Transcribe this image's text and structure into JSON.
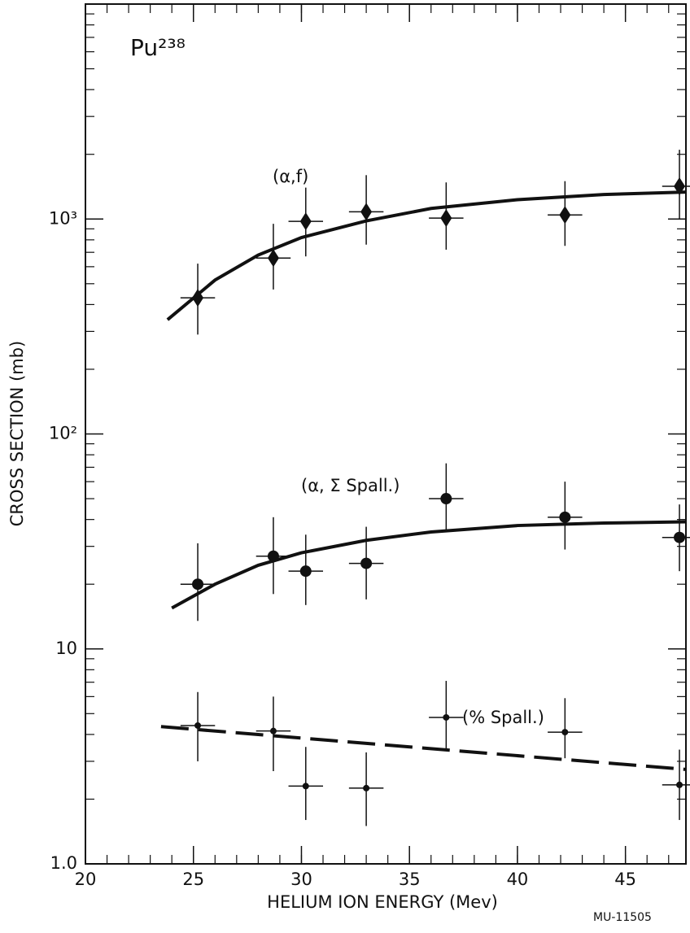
{
  "chart_data": {
    "type": "scatter",
    "title": "Pu²³⁸",
    "xlabel": "HELIUM ION ENERGY (Mev)",
    "ylabel": "CROSS SECTION (mb)",
    "footnote": "MU-11505",
    "log_y": true,
    "xlim": [
      20,
      47.8
    ],
    "xticks": [
      20,
      25,
      30,
      35,
      40,
      45
    ],
    "ylim": [
      1,
      10000
    ],
    "yticks": [
      {
        "value": 1,
        "label": "1.0"
      },
      10,
      {
        "value": 100,
        "label": "10²"
      },
      {
        "value": 1000,
        "label": "10³"
      }
    ],
    "color": "#111",
    "series": [
      {
        "name": "(α,f)",
        "marker": "diamond",
        "x": [
          25.2,
          28.7,
          30.2,
          33.0,
          36.7,
          42.2,
          47.5
        ],
        "values": [
          430,
          658,
          975,
          1080,
          1010,
          1045,
          1420
        ],
        "upper": [
          620,
          950,
          1400,
          1600,
          1480,
          1500,
          2100
        ],
        "lower": [
          290,
          470,
          670,
          760,
          720,
          750,
          1000
        ],
        "xerr": 0.8,
        "fit": {
          "dash": false,
          "x": [
            23.8,
            26,
            28,
            30,
            33,
            36,
            40,
            44,
            47.8
          ],
          "values": [
            340,
            520,
            680,
            820,
            980,
            1120,
            1230,
            1300,
            1335
          ]
        }
      },
      {
        "name": "(α, Σ Spall.)",
        "marker": "circle",
        "x": [
          25.2,
          28.7,
          30.2,
          33.0,
          36.7,
          42.2,
          47.5
        ],
        "values": [
          20,
          27,
          23,
          25,
          50,
          41,
          33
        ],
        "upper": [
          31,
          41,
          34,
          37,
          73,
          60,
          47
        ],
        "lower": [
          13.5,
          18,
          16,
          17,
          35,
          29,
          23
        ],
        "xerr": 0.8,
        "fit": {
          "dash": false,
          "x": [
            24,
            26,
            28,
            30,
            33,
            36,
            40,
            44,
            47.8
          ],
          "values": [
            15.5,
            20,
            24.5,
            28,
            32,
            35,
            37.5,
            38.5,
            39
          ]
        }
      },
      {
        "name": "(% Spall.)",
        "marker": "dot",
        "x": [
          25.2,
          28.7,
          30.2,
          33.0,
          36.7,
          42.2,
          47.5
        ],
        "values": [
          4.4,
          4.15,
          2.3,
          2.25,
          4.8,
          4.1,
          2.33
        ],
        "upper": [
          6.3,
          6.0,
          3.5,
          3.3,
          7.1,
          5.9,
          3.4
        ],
        "lower": [
          3.0,
          2.7,
          1.6,
          1.5,
          3.4,
          3.1,
          1.6
        ],
        "xerr": 0.8,
        "fit": {
          "dash": true,
          "x": [
            23.5,
            47.8
          ],
          "values": [
            4.35,
            2.75
          ]
        }
      }
    ]
  }
}
